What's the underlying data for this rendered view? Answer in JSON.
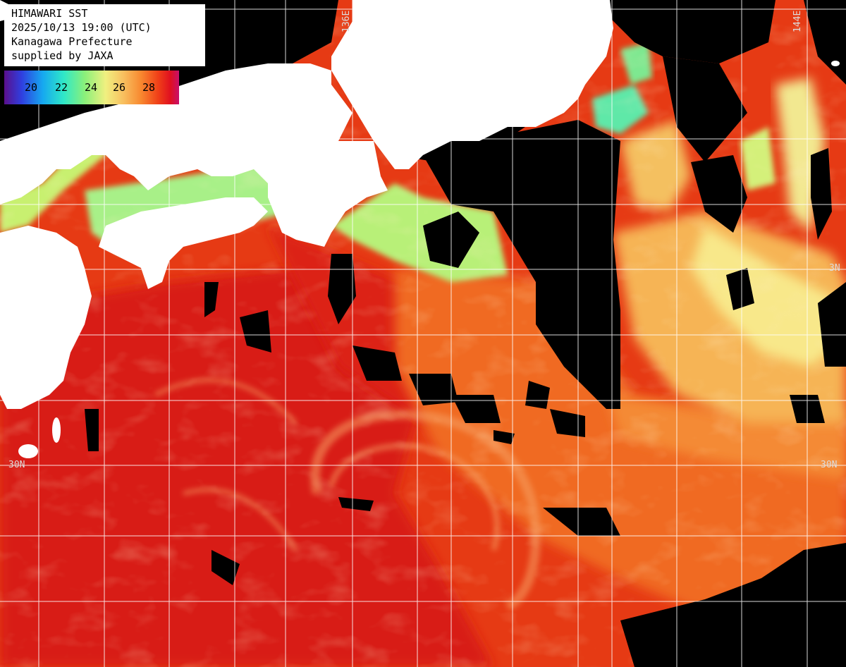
{
  "title": {
    "line1": "HIMAWARI SST",
    "line2": "2025/10/13 19:00 (UTC)",
    "line3": "Kanagawa Prefecture",
    "line4": "supplied by JAXA"
  },
  "legend": {
    "labels": [
      "20",
      "22",
      "24",
      "26",
      "28"
    ],
    "colors": [
      "#4b0f8c",
      "#2f3fe0",
      "#16a8f0",
      "#2fe8c8",
      "#8af07a",
      "#f0f080",
      "#f8c060",
      "#f88a30",
      "#f04018",
      "#e01020",
      "#c8106a"
    ]
  },
  "grid_labels": {
    "lon_136": "136E",
    "lon_144": "144E",
    "lat_34_right": "3N",
    "lat_30_left": "30N",
    "lat_30_right": "30N"
  },
  "colors": {
    "land": "#ffffff",
    "cloud": "#000000",
    "warm_sea": "#e83a16",
    "hot_sea": "#d81e14",
    "mid_sea": "#f27028",
    "cool_sea": "#f8c060",
    "cold_sea": "#b8f078",
    "colder_sea": "#5ee8a8",
    "grid": "#ffffff"
  }
}
